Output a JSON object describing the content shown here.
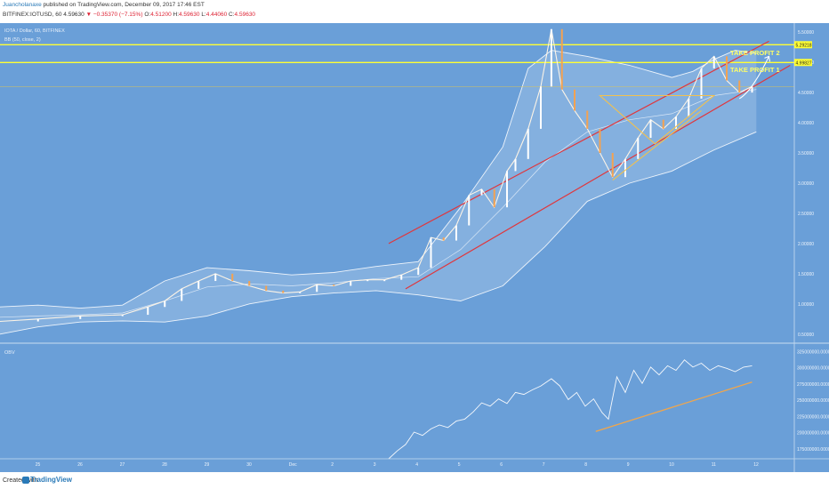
{
  "header": {
    "user": "Juancholanaxe",
    "published": "published on TradingView.com, December 09, 2017 17:46 EST",
    "symbol": "BITFINEX:IOTUSD, 60",
    "last": "4.59630",
    "change": "▼ −0.35370 (−7.15%)",
    "o_label": "O:",
    "o": "4.51200",
    "h_label": "H:",
    "h": "4.59630",
    "l_label": "L:",
    "l": "4.44060",
    "c_label": "C:",
    "c": "4.59630"
  },
  "chart_data": {
    "type": "line",
    "title": "IOTA / Dollar, 60, BITFINEX",
    "indicator": "BB (50, close, 2)",
    "y_ticks": [
      "5.50000",
      "5.00000",
      "4.50000",
      "4.00000",
      "3.50000",
      "3.00000",
      "2.50000",
      "2.00000",
      "1.50000",
      "1.00000",
      "0.50000"
    ],
    "ylim": [
      0.35,
      5.65
    ],
    "x_ticks": [
      "25",
      "26",
      "27",
      "28",
      "29",
      "30",
      "Dec",
      "2",
      "3",
      "4",
      "5",
      "6",
      "7",
      "8",
      "9",
      "10",
      "11",
      "12"
    ],
    "x_tick_days": [
      25,
      26,
      27,
      28,
      29,
      30,
      31,
      32,
      33,
      34,
      35,
      36,
      37,
      38,
      39,
      40,
      41,
      42
    ],
    "xlim": [
      24.1,
      42.9
    ],
    "price_labels": {
      "tp2": "5.29218",
      "tp1": "4.99827"
    },
    "annotations": [
      "TAKE PROFIT 2",
      "TAKE PROFIT 1"
    ],
    "horizontal_levels": [
      5.29218,
      4.99827,
      4.6
    ],
    "price_path": [
      [
        24.1,
        0.71
      ],
      [
        25,
        0.75
      ],
      [
        26,
        0.8
      ],
      [
        27,
        0.82
      ],
      [
        27.6,
        0.95
      ],
      [
        28,
        1.05
      ],
      [
        28.4,
        1.25
      ],
      [
        28.8,
        1.38
      ],
      [
        29.2,
        1.5
      ],
      [
        29.6,
        1.38
      ],
      [
        30,
        1.3
      ],
      [
        30.4,
        1.22
      ],
      [
        30.8,
        1.18
      ],
      [
        31.2,
        1.2
      ],
      [
        31.6,
        1.32
      ],
      [
        32,
        1.3
      ],
      [
        32.4,
        1.38
      ],
      [
        32.8,
        1.4
      ],
      [
        33.2,
        1.4
      ],
      [
        33.6,
        1.48
      ],
      [
        34,
        1.6
      ],
      [
        34.3,
        2.1
      ],
      [
        34.6,
        2.05
      ],
      [
        34.9,
        2.3
      ],
      [
        35.2,
        2.8
      ],
      [
        35.5,
        2.9
      ],
      [
        35.8,
        2.6
      ],
      [
        36.1,
        3.2
      ],
      [
        36.3,
        3.4
      ],
      [
        36.6,
        3.9
      ],
      [
        36.9,
        4.6
      ],
      [
        37.15,
        5.55
      ],
      [
        37.4,
        4.55
      ],
      [
        37.7,
        4.2
      ],
      [
        38,
        3.9
      ],
      [
        38.3,
        3.5
      ],
      [
        38.6,
        3.1
      ],
      [
        38.9,
        3.4
      ],
      [
        39.2,
        3.75
      ],
      [
        39.5,
        4.05
      ],
      [
        39.8,
        3.9
      ],
      [
        40.1,
        4.1
      ],
      [
        40.4,
        4.4
      ],
      [
        40.7,
        4.9
      ],
      [
        41.0,
        5.1
      ],
      [
        41.3,
        4.7
      ],
      [
        41.6,
        4.5
      ],
      [
        41.9,
        4.6
      ]
    ],
    "bb_upper": [
      [
        24.1,
        0.95
      ],
      [
        25,
        0.98
      ],
      [
        26,
        0.93
      ],
      [
        27,
        0.98
      ],
      [
        28,
        1.38
      ],
      [
        29,
        1.6
      ],
      [
        30,
        1.55
      ],
      [
        31,
        1.48
      ],
      [
        32,
        1.52
      ],
      [
        33,
        1.62
      ],
      [
        34,
        1.7
      ],
      [
        35,
        2.6
      ],
      [
        36,
        3.6
      ],
      [
        36.6,
        4.9
      ],
      [
        37.15,
        5.2
      ],
      [
        38,
        5.1
      ],
      [
        39,
        4.95
      ],
      [
        39.5,
        4.85
      ],
      [
        40,
        4.75
      ],
      [
        40.5,
        4.85
      ],
      [
        41,
        5.05
      ],
      [
        41.5,
        5.2
      ],
      [
        42,
        5.15
      ]
    ],
    "bb_middle": [
      [
        24.1,
        0.78
      ],
      [
        25,
        0.8
      ],
      [
        26,
        0.82
      ],
      [
        27,
        0.85
      ],
      [
        28,
        1.05
      ],
      [
        29,
        1.28
      ],
      [
        30,
        1.33
      ],
      [
        31,
        1.3
      ],
      [
        32,
        1.35
      ],
      [
        33,
        1.42
      ],
      [
        34,
        1.45
      ],
      [
        35,
        1.9
      ],
      [
        36,
        2.6
      ],
      [
        37,
        3.35
      ],
      [
        38,
        3.85
      ],
      [
        39,
        4.05
      ],
      [
        40,
        4.15
      ],
      [
        41,
        4.45
      ],
      [
        42,
        4.55
      ]
    ],
    "bb_lower": [
      [
        24.1,
        0.5
      ],
      [
        25,
        0.62
      ],
      [
        26,
        0.7
      ],
      [
        27,
        0.72
      ],
      [
        28,
        0.7
      ],
      [
        29,
        0.8
      ],
      [
        30,
        1.0
      ],
      [
        31,
        1.12
      ],
      [
        32,
        1.18
      ],
      [
        33,
        1.22
      ],
      [
        34,
        1.15
      ],
      [
        35,
        1.05
      ],
      [
        36,
        1.3
      ],
      [
        37,
        1.95
      ],
      [
        38,
        2.7
      ],
      [
        39,
        3.0
      ],
      [
        40,
        3.2
      ],
      [
        41,
        3.55
      ],
      [
        42,
        3.85
      ]
    ],
    "channel_upper": [
      [
        33.3,
        2.0
      ],
      [
        42.3,
        5.35
      ]
    ],
    "channel_lower": [
      [
        33.7,
        1.25
      ],
      [
        42.8,
        4.95
      ]
    ],
    "triangle": [
      [
        38.3,
        4.45
      ],
      [
        41.0,
        4.45
      ],
      [
        39.6,
        3.65
      ]
    ],
    "wedge_line": [
      [
        38.6,
        3.05
      ],
      [
        40.7,
        4.2
      ]
    ],
    "arrow": [
      [
        41.6,
        4.4
      ],
      [
        42.3,
        5.1
      ]
    ],
    "obv": {
      "label": "OBV",
      "y_ticks": [
        "325000000.0000",
        "300000000.0000",
        "275000000.0000",
        "250000000.0000",
        "225000000.0000",
        "200000000.0000",
        "175000000.0000"
      ],
      "ylim": [
        160000000,
        335000000
      ],
      "path": [
        [
          33.3,
          160000000
        ],
        [
          33.5,
          172000000
        ],
        [
          33.7,
          182000000
        ],
        [
          33.9,
          201000000
        ],
        [
          34.1,
          196000000
        ],
        [
          34.3,
          206000000
        ],
        [
          34.5,
          212000000
        ],
        [
          34.7,
          208000000
        ],
        [
          34.9,
          218000000
        ],
        [
          35.1,
          221000000
        ],
        [
          35.3,
          232000000
        ],
        [
          35.5,
          246000000
        ],
        [
          35.7,
          241000000
        ],
        [
          35.9,
          252000000
        ],
        [
          36.1,
          245000000
        ],
        [
          36.3,
          262000000
        ],
        [
          36.5,
          259000000
        ],
        [
          36.7,
          266000000
        ],
        [
          36.9,
          272000000
        ],
        [
          37.15,
          283000000
        ],
        [
          37.35,
          272000000
        ],
        [
          37.55,
          251000000
        ],
        [
          37.75,
          262000000
        ],
        [
          37.95,
          241000000
        ],
        [
          38.15,
          252000000
        ],
        [
          38.35,
          231000000
        ],
        [
          38.5,
          221000000
        ],
        [
          38.7,
          286000000
        ],
        [
          38.9,
          262000000
        ],
        [
          39.1,
          296000000
        ],
        [
          39.3,
          276000000
        ],
        [
          39.5,
          301000000
        ],
        [
          39.7,
          289000000
        ],
        [
          39.9,
          303000000
        ],
        [
          40.1,
          296000000
        ],
        [
          40.3,
          312000000
        ],
        [
          40.5,
          301000000
        ],
        [
          40.7,
          307000000
        ],
        [
          40.9,
          296000000
        ],
        [
          41.1,
          303000000
        ],
        [
          41.3,
          299000000
        ],
        [
          41.5,
          294000000
        ],
        [
          41.7,
          301000000
        ],
        [
          41.9,
          303000000
        ]
      ],
      "trend": [
        [
          38.2,
          202000000
        ],
        [
          41.9,
          278000000
        ]
      ]
    }
  },
  "footer": {
    "created": "Created with",
    "brand": "TradingView"
  }
}
